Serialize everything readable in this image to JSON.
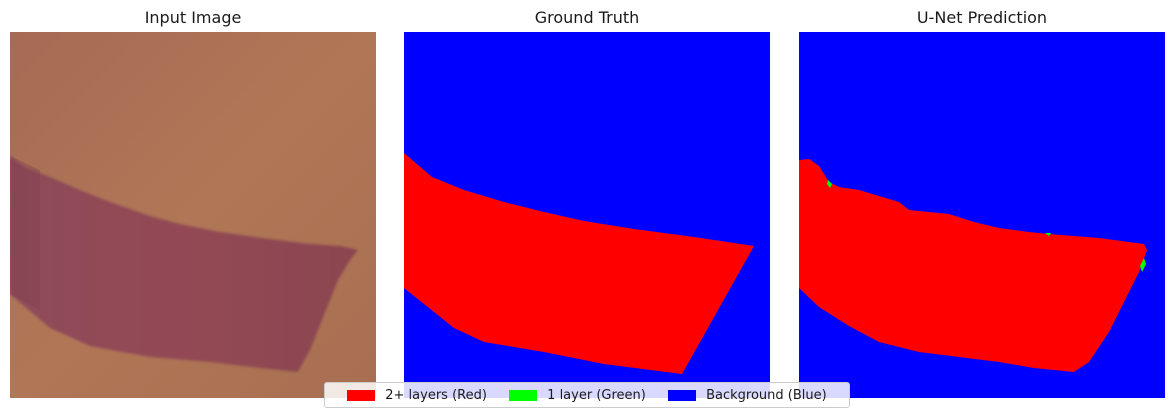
{
  "panels": [
    {
      "title": "Input Image"
    },
    {
      "title": "Ground Truth"
    },
    {
      "title": "U-Net Prediction"
    }
  ],
  "colors": {
    "layers_2plus": "#ff0000",
    "layer_1": "#00ff00",
    "background": "#0000ff",
    "photo_background": "#ad7356",
    "photo_flake": "#8f4652"
  },
  "legend": [
    {
      "label": "2+ layers (Red)",
      "color": "#ff0000"
    },
    {
      "label": "1 layer (Green)",
      "color": "#00ff00"
    },
    {
      "label": "Background (Blue)",
      "color": "#0000ff"
    }
  ]
}
